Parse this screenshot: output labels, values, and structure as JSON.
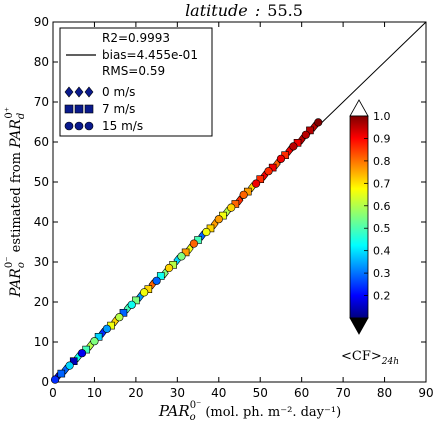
{
  "chart_data": {
    "type": "scatter",
    "title": "latitude : 55.5",
    "title_main": "latitude",
    "title_value": "55.5",
    "xlabel": {
      "par": "PAR",
      "sub": "o",
      "sup": "0⁻",
      "units": "(mol. ph. m⁻². day⁻¹)"
    },
    "ylabel": {
      "par": "PAR",
      "sub": "o",
      "sup": "0⁻",
      "middle": " estimated from ",
      "par2": "PAR",
      "sub2": "d",
      "sup2": "0⁺"
    },
    "xlim": [
      0,
      90
    ],
    "ylim": [
      0,
      90
    ],
    "xticks": [
      0,
      10,
      20,
      30,
      40,
      50,
      60,
      70,
      80,
      90
    ],
    "yticks": [
      0,
      10,
      20,
      30,
      40,
      50,
      60,
      70,
      80,
      90
    ],
    "grid": false,
    "legend": {
      "position": "top-left",
      "stats": [
        "R2=0.9993",
        "bias=4.455e-01",
        "RMS=0.59"
      ],
      "entries": [
        {
          "label": "0 m/s",
          "marker": "diamond"
        },
        {
          "label": "7 m/s",
          "marker": "square"
        },
        {
          "label": "15 m/s",
          "marker": "circle"
        }
      ],
      "marker_color": "#0a1a8c"
    },
    "reference_line": {
      "x": [
        0,
        90
      ],
      "y": [
        0,
        90
      ],
      "color": "#000000"
    },
    "colorbar": {
      "label_main": "<CF>",
      "label_sub": "24h",
      "min": 0.1,
      "max": 1.0,
      "ticks": [
        "1.0",
        "0.9",
        "0.8",
        "0.7",
        "0.6",
        "0.5",
        "0.4",
        "0.3",
        "0.2"
      ],
      "tick_values": [
        1.0,
        0.9,
        0.8,
        0.7,
        0.6,
        0.5,
        0.4,
        0.3,
        0.2
      ],
      "colormap": "jet",
      "extend": "both"
    },
    "series": [
      {
        "marker": "diamond",
        "points": [
          [
            1,
            1.2,
            0.2
          ],
          [
            3,
            3.1,
            0.3
          ],
          [
            6,
            6.2,
            0.45
          ],
          [
            9,
            9.1,
            0.6
          ],
          [
            12,
            12.3,
            0.25
          ],
          [
            15,
            15.2,
            0.7
          ],
          [
            18,
            18.4,
            0.5
          ],
          [
            21,
            21.3,
            0.35
          ],
          [
            24,
            24.4,
            0.8
          ],
          [
            27,
            27.2,
            0.55
          ],
          [
            30,
            30.5,
            0.4
          ],
          [
            33,
            33.3,
            0.65
          ],
          [
            36,
            36.6,
            0.3
          ],
          [
            39,
            39.5,
            0.75
          ],
          [
            42,
            42.6,
            0.6
          ],
          [
            45,
            45.4,
            0.85
          ],
          [
            48,
            48.7,
            0.7
          ],
          [
            51,
            51.6,
            0.9
          ],
          [
            54,
            54.5,
            0.8
          ],
          [
            57,
            57.8,
            0.9
          ],
          [
            60,
            60.6,
            0.95
          ],
          [
            63,
            63.8,
            0.95
          ]
        ]
      },
      {
        "marker": "square",
        "points": [
          [
            2,
            2.1,
            0.3
          ],
          [
            5,
            5.2,
            0.15
          ],
          [
            8,
            8.1,
            0.5
          ],
          [
            11,
            11.3,
            0.4
          ],
          [
            14,
            14.1,
            0.65
          ],
          [
            17,
            17.3,
            0.3
          ],
          [
            20,
            20.4,
            0.55
          ],
          [
            23,
            23.2,
            0.7
          ],
          [
            26,
            26.5,
            0.45
          ],
          [
            29,
            29.3,
            0.6
          ],
          [
            32,
            32.4,
            0.75
          ],
          [
            35,
            35.5,
            0.5
          ],
          [
            38,
            38.4,
            0.7
          ],
          [
            41,
            41.6,
            0.65
          ],
          [
            44,
            44.5,
            0.8
          ],
          [
            47,
            47.6,
            0.75
          ],
          [
            50,
            50.7,
            0.85
          ],
          [
            53,
            53.6,
            0.9
          ],
          [
            56,
            56.7,
            0.85
          ],
          [
            59,
            59.8,
            0.9
          ],
          [
            62,
            62.9,
            0.95
          ]
        ]
      },
      {
        "marker": "circle",
        "points": [
          [
            0.5,
            0.6,
            0.25
          ],
          [
            4,
            4.1,
            0.4
          ],
          [
            7,
            7.2,
            0.2
          ],
          [
            10,
            10.2,
            0.55
          ],
          [
            13,
            13.3,
            0.35
          ],
          [
            16,
            16.2,
            0.6
          ],
          [
            19,
            19.3,
            0.45
          ],
          [
            22,
            22.4,
            0.65
          ],
          [
            25,
            25.3,
            0.3
          ],
          [
            28,
            28.5,
            0.7
          ],
          [
            31,
            31.4,
            0.55
          ],
          [
            34,
            34.6,
            0.8
          ],
          [
            37,
            37.5,
            0.65
          ],
          [
            40,
            40.7,
            0.75
          ],
          [
            43,
            43.6,
            0.7
          ],
          [
            46,
            46.8,
            0.8
          ],
          [
            49,
            49.6,
            0.9
          ],
          [
            52,
            52.7,
            0.85
          ],
          [
            55,
            55.8,
            0.9
          ],
          [
            58,
            58.9,
            0.95
          ],
          [
            61,
            61.8,
            0.95
          ],
          [
            64,
            64.9,
            1.0
          ]
        ]
      }
    ]
  }
}
